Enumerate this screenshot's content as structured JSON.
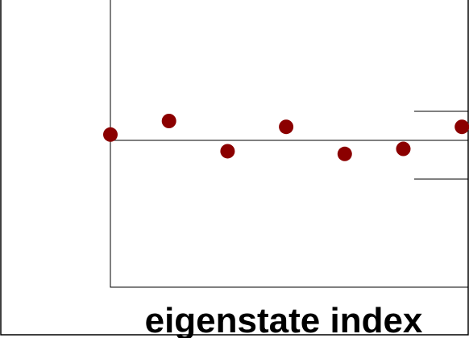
{
  "colors": {
    "marker": "#8b0000",
    "axis": "#000000",
    "background": "#ffffff"
  },
  "chart_data": {
    "type": "scatter",
    "xlabel": "eigenstate index",
    "ylabel": "",
    "title": "",
    "grid": false,
    "legend": "none",
    "x": [
      1,
      2,
      3,
      4,
      5,
      6,
      7
    ],
    "y": [
      0.15,
      0.5,
      -0.28,
      0.35,
      -0.35,
      -0.22,
      0.35
    ],
    "reference_lines": {
      "center": 0.0,
      "upper": 0.75,
      "lower": -1.0
    }
  }
}
